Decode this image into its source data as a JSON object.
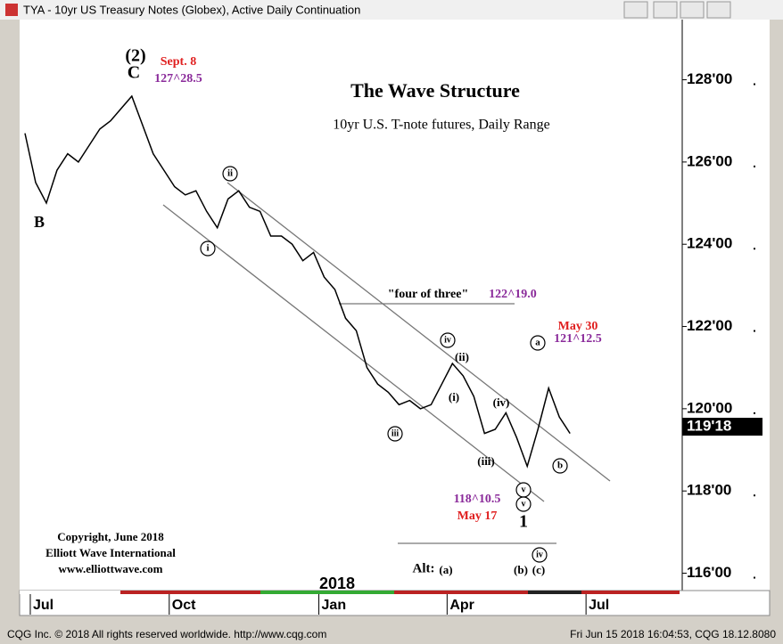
{
  "window": {
    "title": "TYA - 10yr US Treasury Notes (Globex), Active Daily Continuation"
  },
  "status_bar": {
    "left": "CQG Inc. © 2018 All rights reserved worldwide. http://www.cqg.com",
    "right": "Fri Jun 15 2018 16:04:53, CQG 18.12.8080"
  },
  "copyright": [
    "Copyright, June 2018",
    "Elliott Wave International",
    "www.elliottwave.com"
  ],
  "chart_data": {
    "type": "line",
    "title": "The Wave Structure",
    "subtitle": "10yr U.S. T-note futures, Daily Range",
    "year_label": "2018",
    "categories": [
      null,
      "Jul",
      null,
      null,
      null,
      null,
      null,
      null,
      null,
      null,
      null,
      null,
      null,
      null,
      "Oct",
      null,
      null,
      null,
      null,
      null,
      null,
      null,
      null,
      null,
      null,
      null,
      null,
      null,
      "Jan",
      null,
      null,
      null,
      null,
      null,
      null,
      null,
      null,
      null,
      null,
      null,
      "Apr",
      null,
      null,
      null,
      null,
      null,
      null,
      null,
      null,
      null,
      null,
      null,
      null,
      "Jul",
      null,
      null,
      null,
      null,
      null,
      null,
      null,
      null
    ],
    "values": [
      126.7,
      125.5,
      125.0,
      125.8,
      126.2,
      126.0,
      126.4,
      126.8,
      127.0,
      127.3,
      127.6,
      126.9,
      126.2,
      125.8,
      125.4,
      125.2,
      125.3,
      124.8,
      124.4,
      125.1,
      125.3,
      124.9,
      124.8,
      124.2,
      124.2,
      124.0,
      123.6,
      123.8,
      123.2,
      122.9,
      122.2,
      121.9,
      121.0,
      120.6,
      120.4,
      120.1,
      120.2,
      120.0,
      120.1,
      120.6,
      121.1,
      120.8,
      120.3,
      119.4,
      119.5,
      119.9,
      119.3,
      118.6,
      119.5,
      120.5,
      119.8,
      119.4,
      null,
      null,
      null,
      null,
      null,
      null,
      null,
      null,
      null,
      null
    ],
    "color": "#000000",
    "ylim": [
      115.6,
      128.9
    ],
    "yticks": [
      {
        "value": 116,
        "label": "116'00"
      },
      {
        "value": 118,
        "label": "118'00"
      },
      {
        "value": 120,
        "label": "120'00"
      },
      {
        "value": 122,
        "label": "122'00"
      },
      {
        "value": 124,
        "label": "124'00"
      },
      {
        "value": 126,
        "label": "126'00"
      },
      {
        "value": 128,
        "label": "128'00"
      }
    ],
    "last_price": {
      "value": 119.5625,
      "label": "119'18"
    },
    "annotations": [
      "(2)",
      "C",
      "Sept. 8",
      "127^28.5",
      "B",
      "\"four of three\"",
      "122^19.0",
      "May 30",
      "121^12.5",
      "118^10.5",
      "May 17",
      "1",
      "Alt:",
      "(a)",
      "(b)",
      "(c)",
      "ii",
      "i",
      "iv",
      "(ii)",
      "(i)",
      "(iv)",
      "iii",
      "(iii)",
      "a",
      "b",
      "v",
      "v",
      "iv"
    ]
  }
}
